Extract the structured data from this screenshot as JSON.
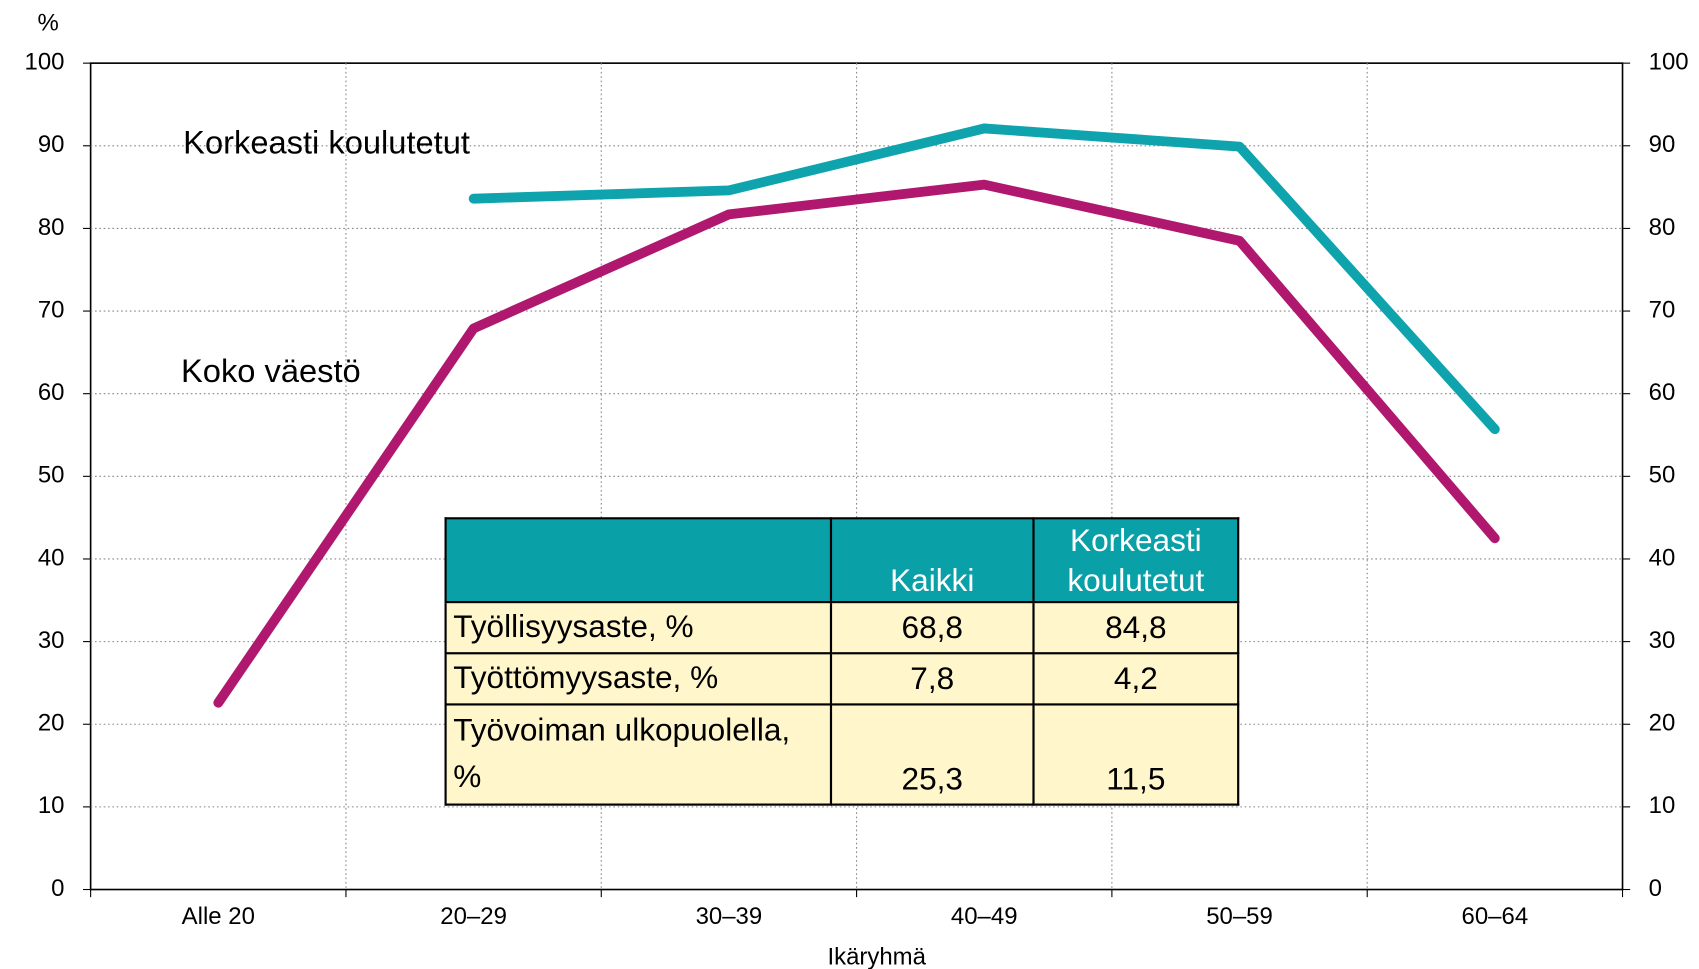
{
  "chart_data": {
    "type": "line",
    "y_label": "%",
    "x_label": "Ikäryhmä",
    "categories": [
      "Alle 20",
      "20–29",
      "30–39",
      "40–49",
      "50–59",
      "60–64"
    ],
    "series": [
      {
        "name": "Korkeasti koulutetut",
        "color": "#0fa3ad",
        "values": [
          null,
          83.6,
          84.6,
          92.1,
          89.9,
          55.7
        ]
      },
      {
        "name": "Koko väestö",
        "color": "#b0186f",
        "values": [
          22.6,
          67.9,
          81.7,
          85.3,
          78.5,
          42.5
        ]
      }
    ],
    "ylim": [
      0,
      100
    ],
    "yticks": [
      0,
      10,
      20,
      30,
      40,
      50,
      60,
      70,
      80,
      90,
      100
    ],
    "y2lim": [
      0,
      100
    ],
    "y2ticks": [
      0,
      10,
      20,
      30,
      40,
      50,
      60,
      70,
      80,
      90,
      100
    ],
    "grid": true
  },
  "table": {
    "columns": [
      "Kaikki",
      "Korkeasti koulutetut"
    ],
    "rows": [
      [
        "Työllisyysaste, %",
        "68,8",
        "84,8"
      ],
      [
        "Työttömyysaste, %",
        "7,8",
        "4,2"
      ],
      [
        "Työvoiman ulkopuolella, %",
        "25,3",
        "11,5"
      ]
    ]
  }
}
